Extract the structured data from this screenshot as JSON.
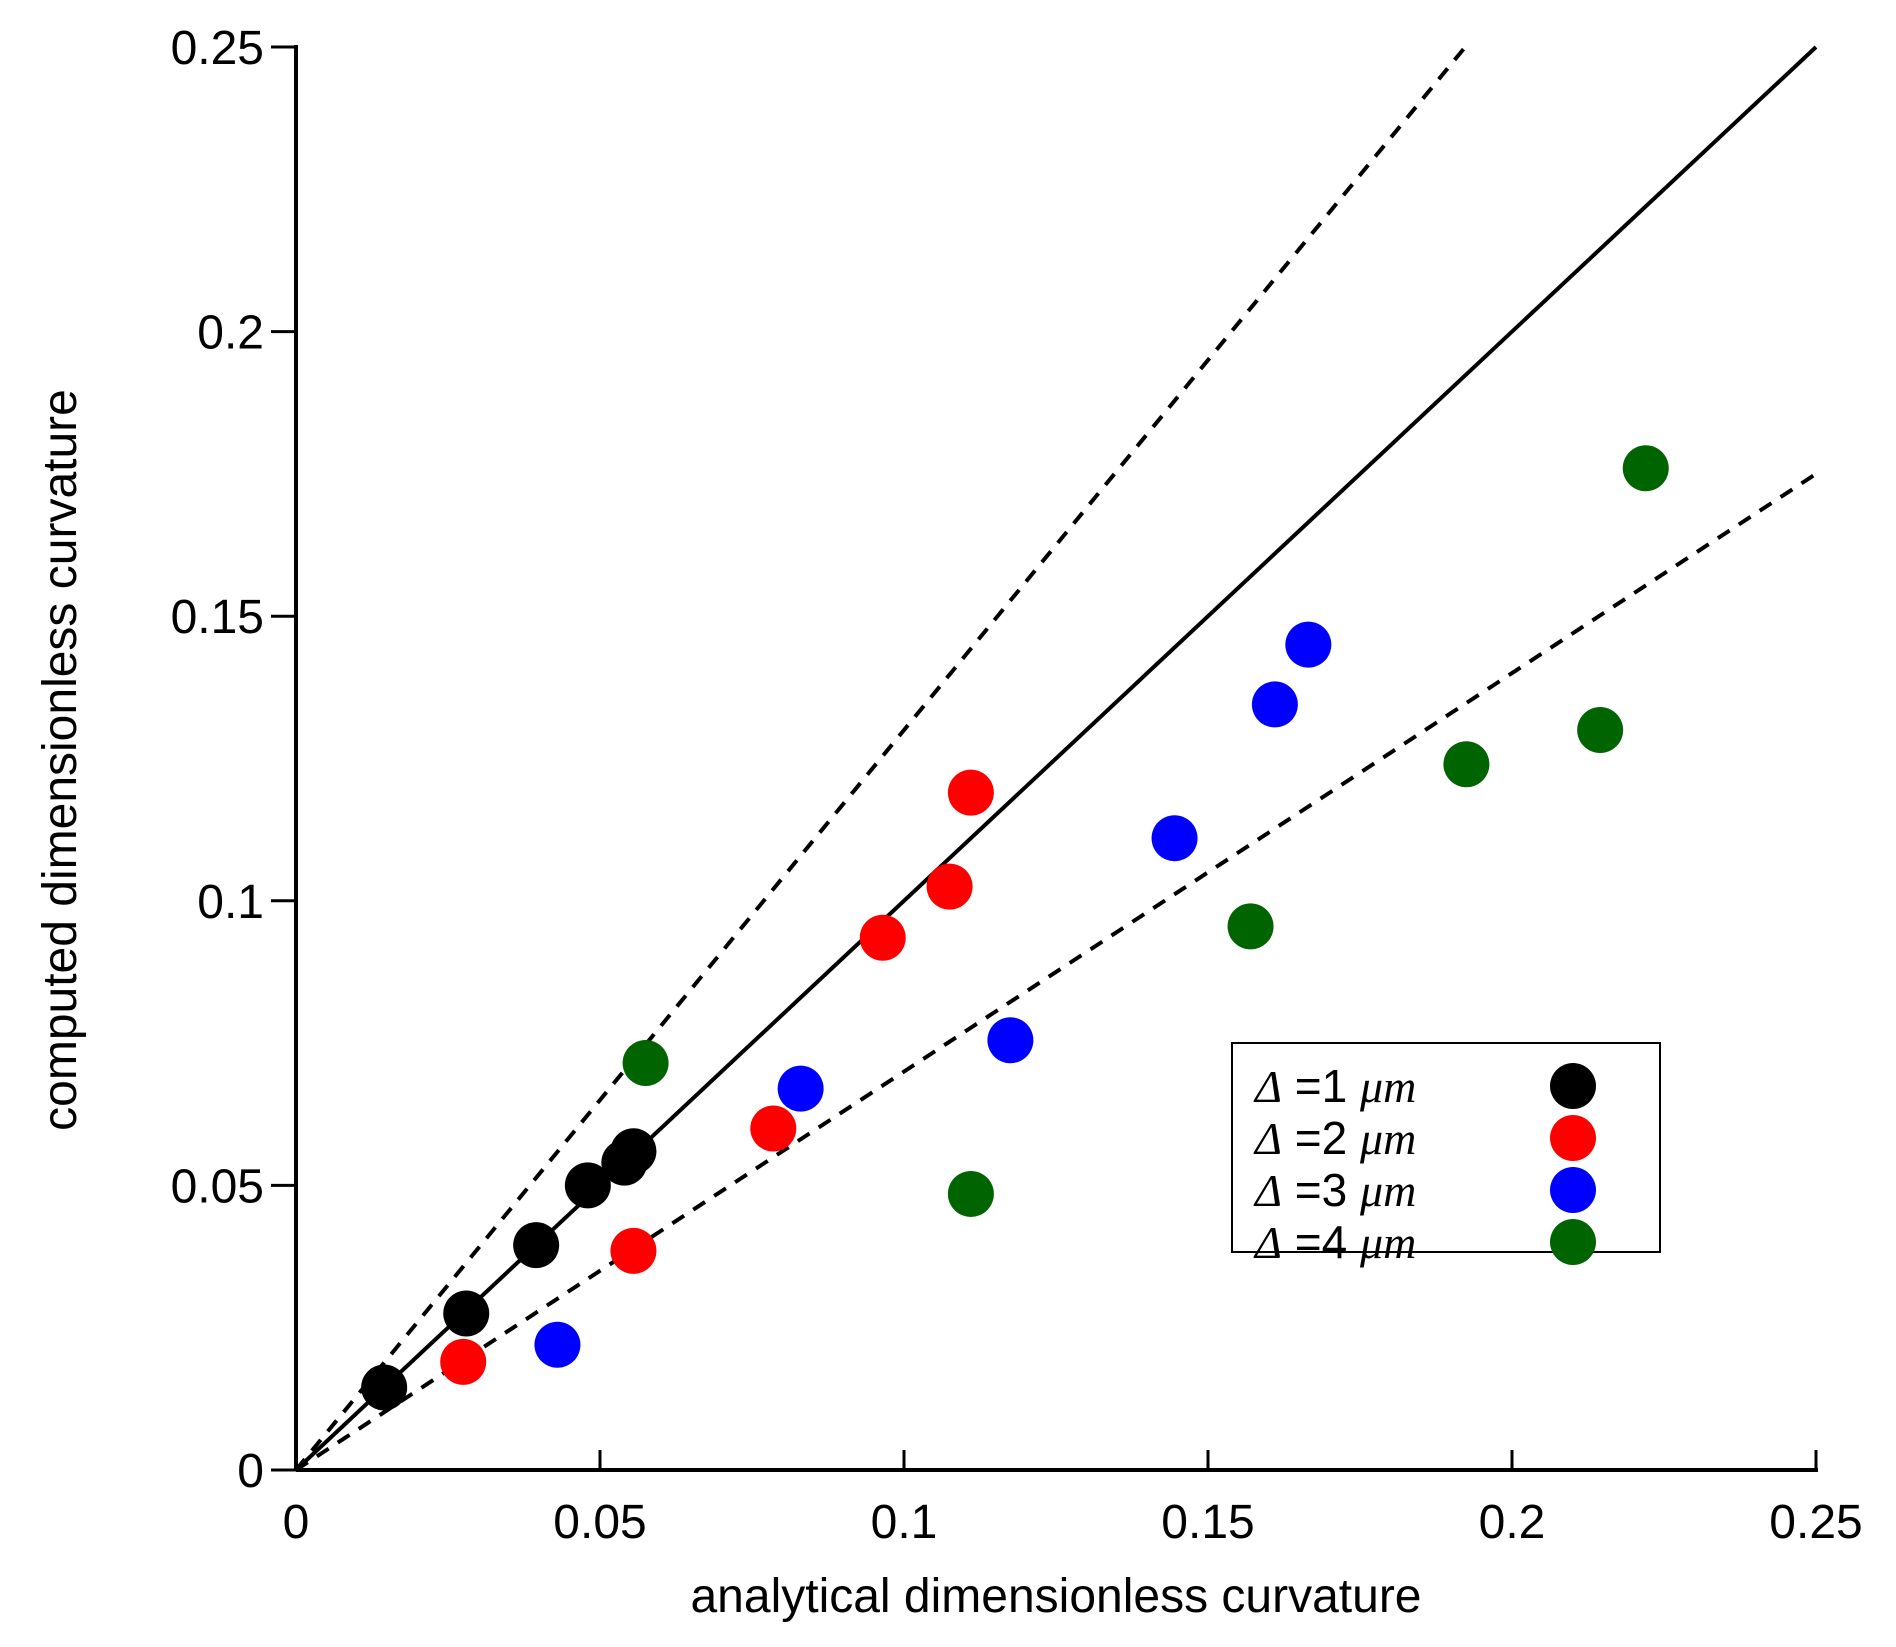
{
  "chart_data": {
    "type": "scatter",
    "title": "",
    "xlabel": "analytical dimensionless curvature",
    "ylabel": "computed dimensionless curvature",
    "xlim": [
      0,
      0.25
    ],
    "ylim": [
      0,
      0.25
    ],
    "x_ticks": [
      "0",
      "0.05",
      "0.1",
      "0.15",
      "0.2",
      "0.25"
    ],
    "y_ticks": [
      "0",
      "0.05",
      "0.1",
      "0.15",
      "0.2",
      "0.25"
    ],
    "grid": false,
    "legend_position": "center-right",
    "reference_lines": [
      {
        "name": "y = x",
        "style": "solid",
        "slope": 1.0
      },
      {
        "name": "upper bound",
        "style": "dashed",
        "slope": 1.3
      },
      {
        "name": "lower bound",
        "style": "dashed",
        "slope": 0.7
      }
    ],
    "series": [
      {
        "name": "Δ =1 μm",
        "delta_symbol": "Δ",
        "label_value": "=1",
        "unit": "μm",
        "color": "#000000",
        "points": [
          [
            0.0145,
            0.0145
          ],
          [
            0.028,
            0.0275
          ],
          [
            0.0395,
            0.0395
          ],
          [
            0.048,
            0.05
          ],
          [
            0.054,
            0.054
          ],
          [
            0.0555,
            0.056
          ]
        ]
      },
      {
        "name": "Δ =2 μm",
        "delta_symbol": "Δ",
        "label_value": "=2",
        "unit": "μm",
        "color": "#ff0000",
        "points": [
          [
            0.0275,
            0.019
          ],
          [
            0.0555,
            0.0385
          ],
          [
            0.0785,
            0.06
          ],
          [
            0.0965,
            0.0935
          ],
          [
            0.1075,
            0.1025
          ],
          [
            0.111,
            0.119
          ]
        ]
      },
      {
        "name": "Δ =3 μm",
        "delta_symbol": "Δ",
        "label_value": "=3",
        "unit": "μm",
        "color": "#0000ff",
        "points": [
          [
            0.043,
            0.022
          ],
          [
            0.083,
            0.067
          ],
          [
            0.1175,
            0.0755
          ],
          [
            0.1445,
            0.111
          ],
          [
            0.161,
            0.1345
          ],
          [
            0.1665,
            0.145
          ]
        ]
      },
      {
        "name": "Δ =4 μm",
        "delta_symbol": "Δ",
        "label_value": "=4",
        "unit": "μm",
        "color": "#006400",
        "points": [
          [
            0.0575,
            0.0715
          ],
          [
            0.111,
            0.0485
          ],
          [
            0.157,
            0.0955
          ],
          [
            0.1925,
            0.124
          ],
          [
            0.2145,
            0.13
          ],
          [
            0.222,
            0.176
          ]
        ]
      }
    ]
  }
}
